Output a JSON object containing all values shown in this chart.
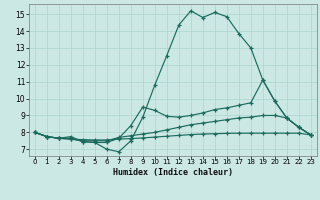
{
  "bg_color": "#cce8e4",
  "line_color": "#1a6b5e",
  "grid_color": "#aad4cf",
  "xlabel": "Humidex (Indice chaleur)",
  "xlim": [
    -0.5,
    23.5
  ],
  "ylim": [
    6.6,
    15.6
  ],
  "xticks": [
    0,
    1,
    2,
    3,
    4,
    5,
    6,
    7,
    8,
    9,
    10,
    11,
    12,
    13,
    14,
    15,
    16,
    17,
    18,
    19,
    20,
    21,
    22,
    23
  ],
  "yticks": [
    7,
    8,
    9,
    10,
    11,
    12,
    13,
    14,
    15
  ],
  "curve1_x": [
    0,
    1,
    2,
    3,
    4,
    5,
    6,
    7,
    8,
    9,
    10,
    11,
    12,
    13,
    14,
    15,
    16,
    17,
    18,
    19,
    20,
    21,
    22,
    23
  ],
  "curve1_y": [
    8.0,
    7.75,
    7.65,
    7.75,
    7.45,
    7.4,
    7.0,
    6.85,
    7.5,
    8.9,
    10.8,
    12.55,
    14.35,
    15.2,
    14.8,
    15.1,
    14.85,
    13.85,
    13.0,
    11.1,
    9.85,
    8.85,
    8.3,
    7.85
  ],
  "curve2_x": [
    0,
    1,
    2,
    3,
    4,
    5,
    6,
    7,
    8,
    9,
    10,
    11,
    12,
    13,
    14,
    15,
    16,
    17,
    18,
    19,
    20,
    21,
    22,
    23
  ],
  "curve2_y": [
    8.0,
    7.75,
    7.65,
    7.65,
    7.45,
    7.4,
    7.4,
    7.65,
    8.4,
    9.5,
    9.3,
    8.95,
    8.9,
    9.0,
    9.15,
    9.35,
    9.45,
    9.6,
    9.75,
    11.1,
    9.85,
    8.85,
    8.3,
    7.85
  ],
  "curve3_x": [
    0,
    1,
    2,
    3,
    4,
    5,
    6,
    7,
    8,
    9,
    10,
    11,
    12,
    13,
    14,
    15,
    16,
    17,
    18,
    19,
    20,
    21,
    22,
    23
  ],
  "curve3_y": [
    8.0,
    7.75,
    7.65,
    7.6,
    7.5,
    7.5,
    7.5,
    7.7,
    7.8,
    7.9,
    8.0,
    8.15,
    8.3,
    8.45,
    8.55,
    8.65,
    8.75,
    8.85,
    8.9,
    9.0,
    9.0,
    8.85,
    8.3,
    7.85
  ],
  "curve4_x": [
    0,
    1,
    2,
    3,
    4,
    5,
    6,
    7,
    8,
    9,
    10,
    11,
    12,
    13,
    14,
    15,
    16,
    17,
    18,
    19,
    20,
    21,
    22,
    23
  ],
  "curve4_y": [
    8.0,
    7.75,
    7.65,
    7.6,
    7.57,
    7.55,
    7.55,
    7.6,
    7.63,
    7.67,
    7.72,
    7.77,
    7.82,
    7.87,
    7.9,
    7.92,
    7.94,
    7.95,
    7.95,
    7.95,
    7.95,
    7.95,
    7.95,
    7.85
  ]
}
